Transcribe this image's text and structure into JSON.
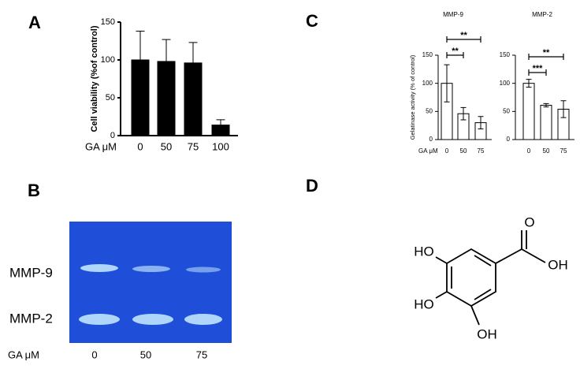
{
  "panel_labels": [
    "A",
    "B",
    "C",
    "D"
  ],
  "chart_data": [
    {
      "type": "bar",
      "ylabel": "Cell viability (%of control)",
      "xlabel": "GA μM",
      "categories": [
        "0",
        "50",
        "75",
        "100"
      ],
      "values": [
        100,
        98,
        96,
        14
      ],
      "errors": [
        38,
        29,
        27,
        7
      ],
      "color": "#000000",
      "ylim": [
        0,
        150
      ],
      "yticks": [
        0,
        50,
        100,
        150
      ]
    },
    {
      "type": "bar",
      "title": "MMP-9",
      "ylabel": "Gelatinase activity (% of control)",
      "xlabel": "GA μM",
      "categories": [
        "0",
        "50",
        "75"
      ],
      "values": [
        100,
        46,
        30
      ],
      "errors": [
        33,
        11,
        11
      ],
      "color": "#ffffff",
      "ylim": [
        0,
        150
      ],
      "yticks": [
        0,
        50,
        100,
        150
      ],
      "annotations": [
        "**",
        "**"
      ]
    },
    {
      "type": "bar",
      "title": "MMP-2",
      "categories": [
        "0",
        "50",
        "75"
      ],
      "values": [
        100,
        61,
        54
      ],
      "errors": [
        7,
        3,
        15
      ],
      "color": "#ffffff",
      "ylim": [
        0,
        150
      ],
      "yticks": [
        0,
        50,
        100,
        150
      ],
      "annotations": [
        "**",
        "***"
      ]
    }
  ],
  "gel": {
    "bands": [
      "MMP-9",
      "MMP-2"
    ],
    "lane_title": "GA μM",
    "lanes": [
      "0",
      "50",
      "75"
    ]
  },
  "structure": {
    "labels": [
      "O",
      "OH",
      "HO",
      "HO",
      "OH"
    ]
  }
}
